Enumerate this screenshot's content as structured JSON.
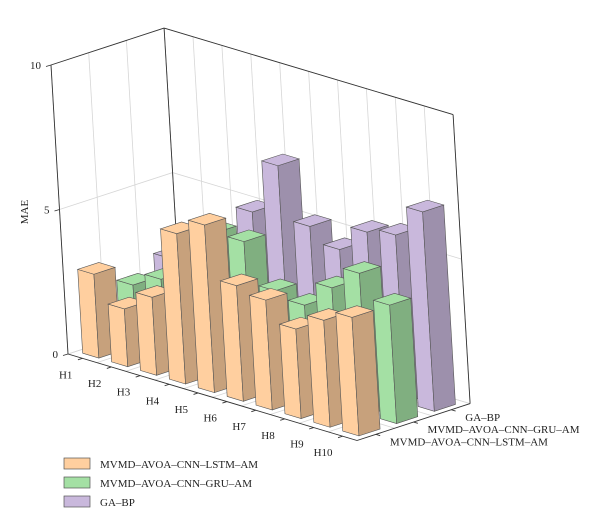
{
  "chart_data": {
    "type": "bar",
    "subtype": "3d-grouped",
    "categories": [
      "H1",
      "H2",
      "H3",
      "H4",
      "H5",
      "H6",
      "H7",
      "H8",
      "H9",
      "H10"
    ],
    "series": [
      {
        "name": "MVMD–AVOA–CNN–LSTM–AM",
        "values": [
          2.9,
          2.0,
          2.7,
          5.2,
          5.8,
          4.0,
          3.8,
          3.1,
          3.7,
          4.1
        ]
      },
      {
        "name": "MVMD–AVOA–CNN–GRU–AM",
        "values": [
          2.1,
          2.6,
          2.6,
          4.8,
          4.8,
          3.4,
          3.2,
          4.1,
          4.9,
          4.1
        ]
      },
      {
        "name": "GA–BP",
        "values": [
          2.6,
          3.0,
          3.4,
          5.1,
          7.0,
          5.2,
          4.7,
          5.6,
          5.8,
          6.9
        ]
      }
    ],
    "xlabel": "",
    "ylabel": "MAE",
    "zlim": [
      0,
      10
    ],
    "zticks": [
      "0",
      "5",
      "10"
    ],
    "colors": {
      "MVMD–AVOA–CNN–LSTM–AM": "#ffcf9f",
      "MVMD–AVOA–CNN–GRU–AM": "#a4e0a4",
      "GA–BP": "#c9b8dc"
    },
    "legend_position": "bottom-left",
    "grid": true
  }
}
